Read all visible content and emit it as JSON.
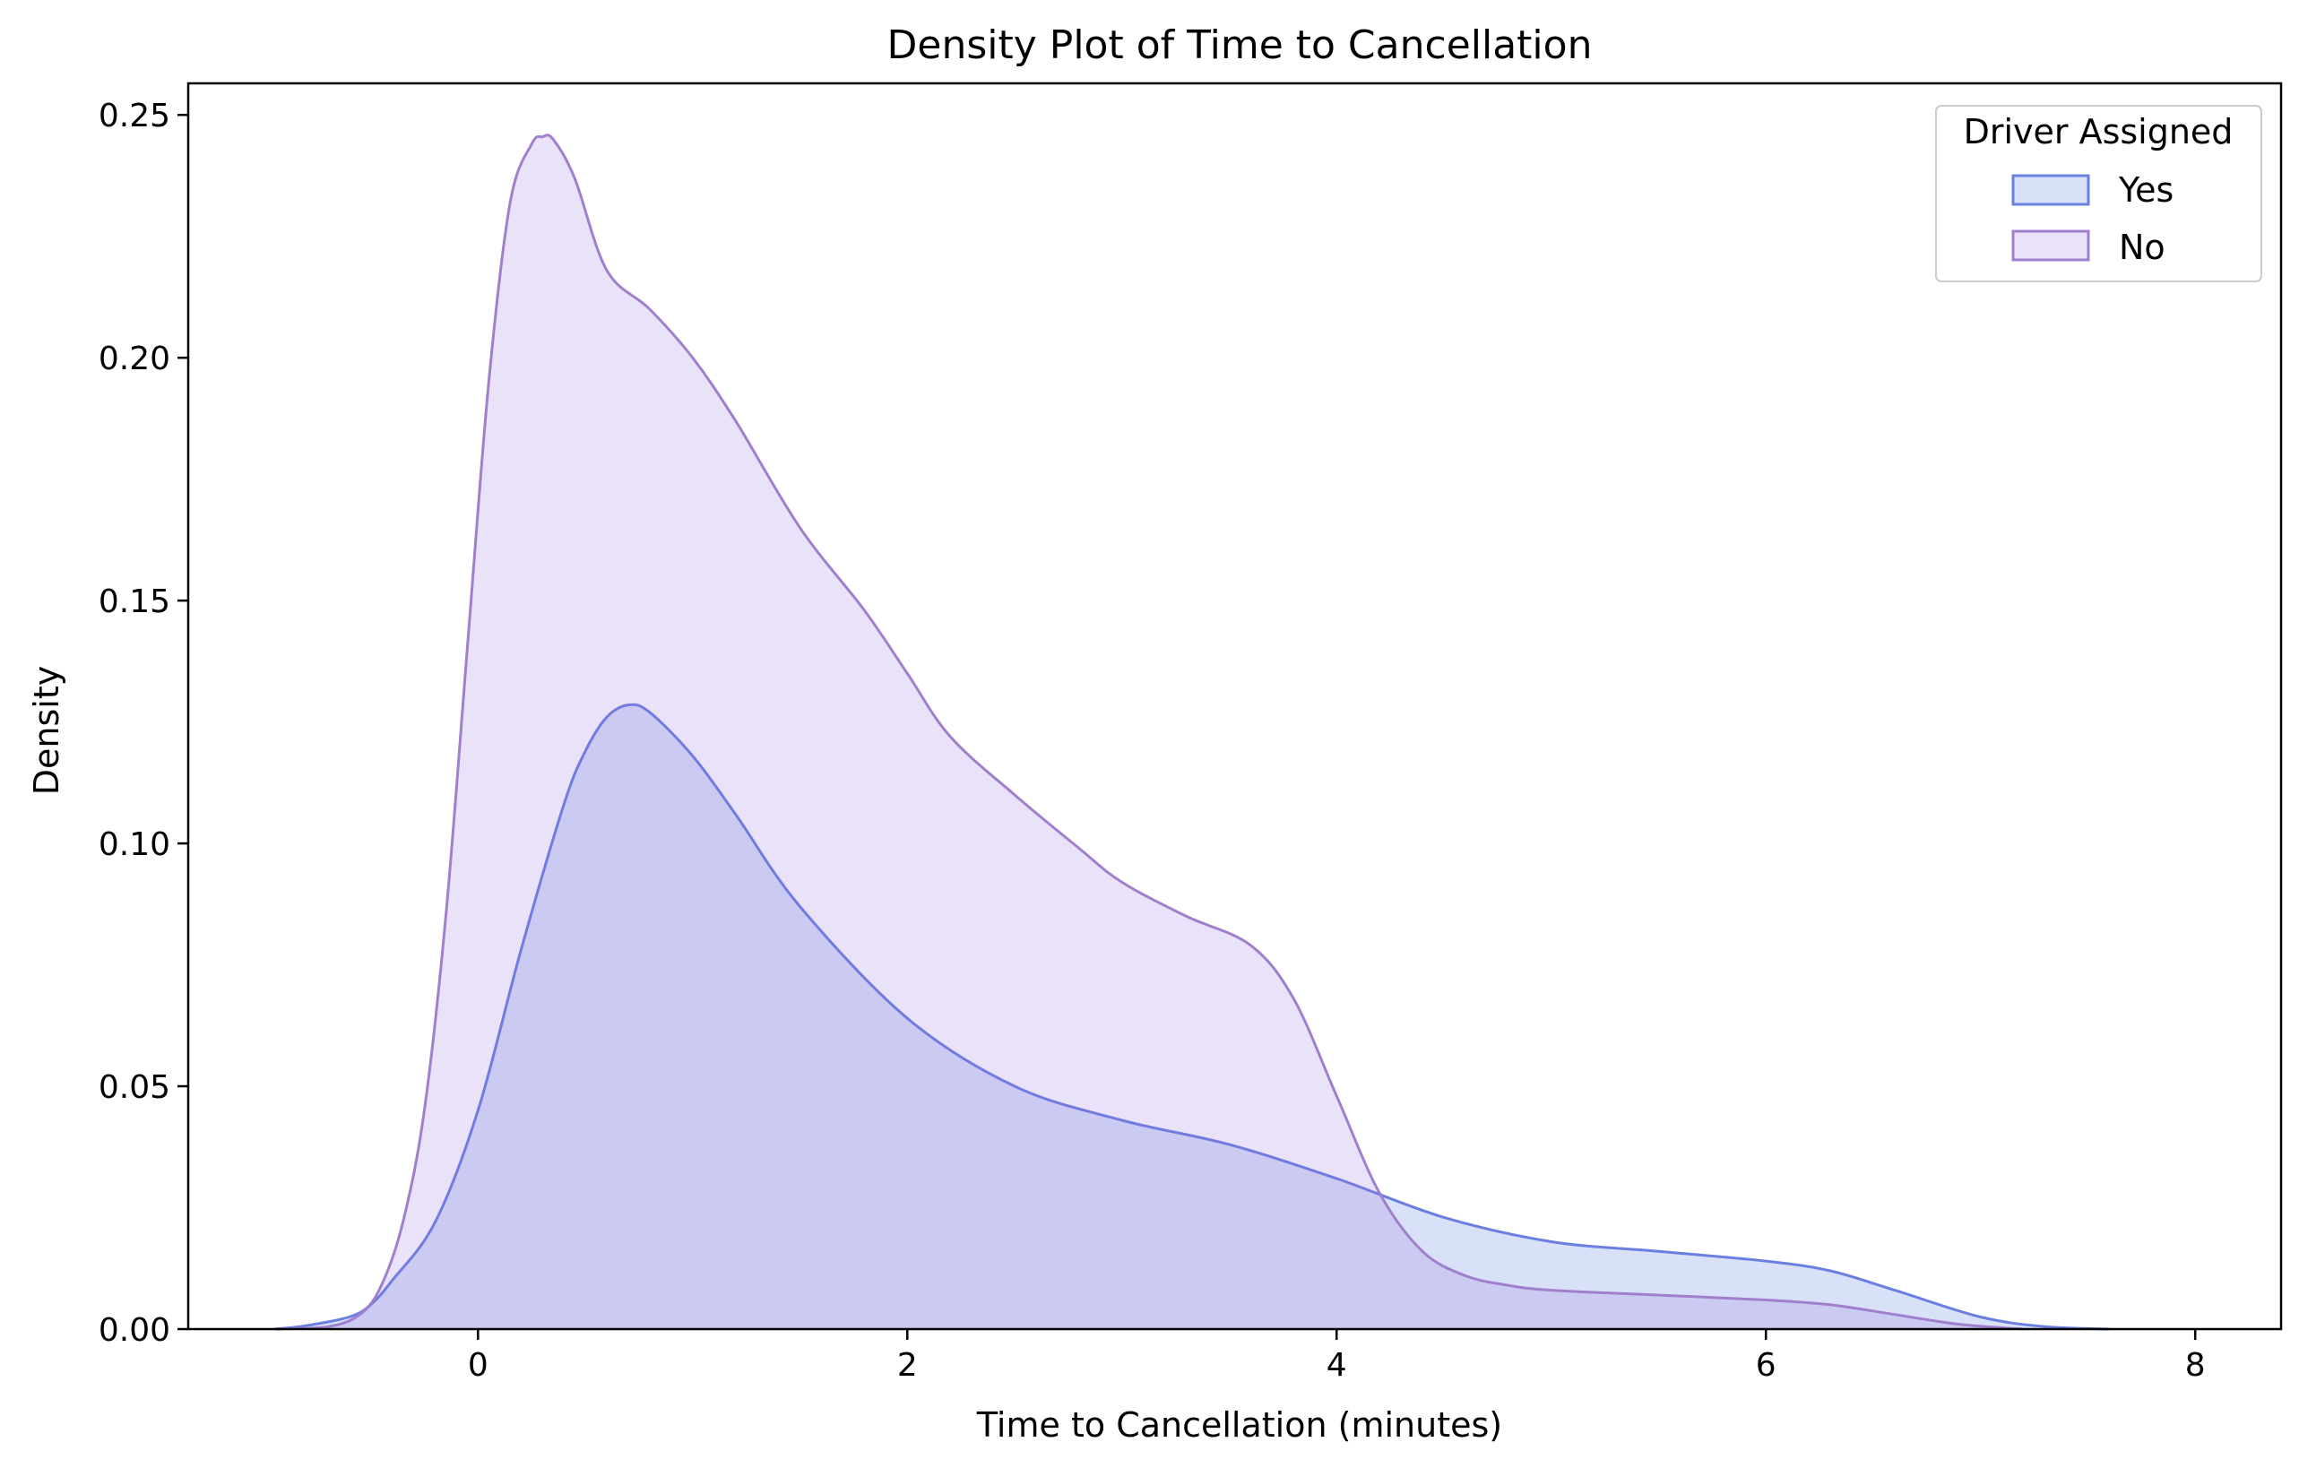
{
  "chart_data": {
    "type": "area",
    "title": "Density Plot of Time to Cancellation",
    "xlabel": "Time to Cancellation (minutes)",
    "ylabel": "Density",
    "xlim": [
      -1.35,
      8.4
    ],
    "ylim": [
      0,
      0.2565
    ],
    "xticks": [
      0,
      2,
      4,
      6,
      8
    ],
    "yticks": [
      0.0,
      0.05,
      0.1,
      0.15,
      0.2,
      0.25
    ],
    "xtick_labels": [
      "0",
      "2",
      "4",
      "6",
      "8"
    ],
    "ytick_labels": [
      "0.00",
      "0.05",
      "0.10",
      "0.15",
      "0.20",
      "0.25"
    ],
    "grid": false,
    "legend": {
      "title": "Driver Assigned",
      "placement": "top-right"
    },
    "series": [
      {
        "name": "Yes",
        "line_color": "#6b7fe0",
        "fill_color": "#4169e1",
        "fill_opacity": 0.2,
        "x": [
          -0.95,
          -0.8,
          -0.6,
          -0.5,
          -0.4,
          -0.2,
          0.0,
          0.2,
          0.4,
          0.5,
          0.6,
          0.7,
          0.8,
          1.0,
          1.2,
          1.5,
          2.0,
          2.5,
          3.0,
          3.5,
          4.0,
          4.5,
          5.0,
          5.5,
          6.0,
          6.3,
          6.6,
          7.0,
          7.3,
          7.6
        ],
        "y": [
          0.0,
          0.0007,
          0.0025,
          0.005,
          0.01,
          0.022,
          0.045,
          0.078,
          0.108,
          0.119,
          0.126,
          0.1285,
          0.127,
          0.118,
          0.106,
          0.087,
          0.064,
          0.05,
          0.043,
          0.038,
          0.031,
          0.023,
          0.018,
          0.016,
          0.014,
          0.012,
          0.008,
          0.0025,
          0.0005,
          0.0
        ]
      },
      {
        "name": "No",
        "line_color": "#a07fcc",
        "fill_color": "#9370db",
        "fill_opacity": 0.2,
        "x": [
          -0.95,
          -0.7,
          -0.55,
          -0.45,
          -0.35,
          -0.25,
          -0.15,
          -0.05,
          0.05,
          0.15,
          0.25,
          0.3,
          0.35,
          0.45,
          0.6,
          0.8,
          1.0,
          1.2,
          1.5,
          1.8,
          2.0,
          2.2,
          2.5,
          2.8,
          3.0,
          3.3,
          3.6,
          3.8,
          4.0,
          4.2,
          4.4,
          4.6,
          4.8,
          5.0,
          5.5,
          6.0,
          6.3,
          6.6,
          6.9,
          7.2
        ],
        "y": [
          0.0,
          0.0005,
          0.003,
          0.009,
          0.022,
          0.045,
          0.085,
          0.14,
          0.195,
          0.232,
          0.244,
          0.2455,
          0.245,
          0.237,
          0.218,
          0.21,
          0.2,
          0.187,
          0.165,
          0.148,
          0.135,
          0.122,
          0.11,
          0.099,
          0.092,
          0.085,
          0.079,
          0.068,
          0.048,
          0.028,
          0.016,
          0.011,
          0.009,
          0.008,
          0.007,
          0.006,
          0.005,
          0.003,
          0.001,
          0.0
        ]
      }
    ]
  }
}
